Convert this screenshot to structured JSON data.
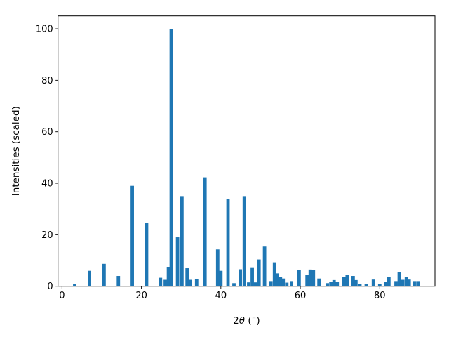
{
  "chart_data": {
    "type": "bar",
    "title": "",
    "xlabel": "2θ (°)",
    "ylabel": "Intensities (scaled)",
    "xlim": [
      -1.0,
      93.9
    ],
    "ylim": [
      0,
      105
    ],
    "x_ticks": [
      0,
      20,
      40,
      60,
      80
    ],
    "y_ticks": [
      0,
      20,
      40,
      60,
      80,
      100
    ],
    "legend": "none",
    "grid": false,
    "bar_color": "#1f77b4",
    "bar_width_x": 0.85,
    "x": [
      3.2,
      6.9,
      10.6,
      14.2,
      17.7,
      21.3,
      24.8,
      26.0,
      26.8,
      27.5,
      29.1,
      30.2,
      31.5,
      32.2,
      33.9,
      36.0,
      39.2,
      40.0,
      41.8,
      43.3,
      44.9,
      45.9,
      47.0,
      47.9,
      48.7,
      49.6,
      51.0,
      52.6,
      53.5,
      54.2,
      55.0,
      55.7,
      56.6,
      57.8,
      59.7,
      61.7,
      62.5,
      63.3,
      64.7,
      66.8,
      67.7,
      68.5,
      69.3,
      71.0,
      71.8,
      73.3,
      74.0,
      75.0,
      76.6,
      78.4,
      80.0,
      81.5,
      82.3,
      84.1,
      84.9,
      85.8,
      86.7,
      87.4,
      88.7,
      89.6
    ],
    "values": [
      1,
      6,
      8.7,
      4,
      39,
      24.5,
      3.3,
      2.5,
      7.5,
      100,
      19,
      35,
      7,
      2.5,
      2.7,
      42.3,
      14.3,
      6,
      34,
      1.2,
      6.6,
      35,
      1.5,
      7.1,
      1.5,
      10.4,
      15.4,
      2,
      9.3,
      5,
      3.5,
      3,
      1.4,
      2,
      6.2,
      4.5,
      6.5,
      6.4,
      3,
      1.2,
      1.8,
      2.4,
      1.8,
      3.6,
      4.5,
      4,
      2.4,
      1,
      1,
      2.6,
      0.8,
      1.8,
      3.5,
      2,
      5.4,
      2.5,
      3.5,
      2.6,
      2,
      2
    ]
  }
}
